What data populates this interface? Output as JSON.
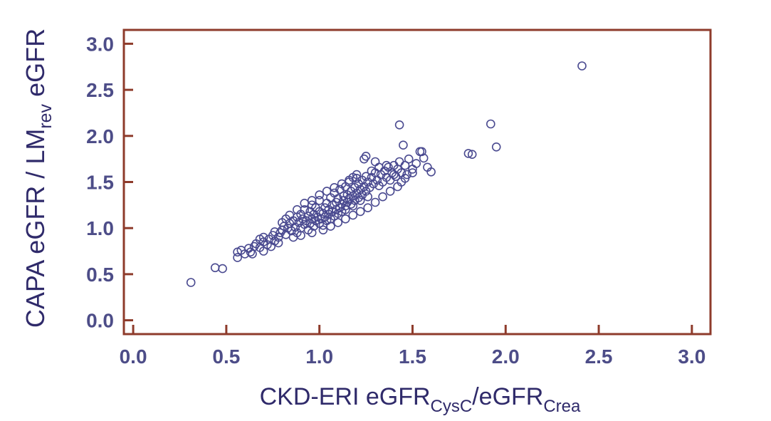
{
  "chart_data": {
    "type": "scatter",
    "xlabel": {
      "main": "CKD-ERI eGFR",
      "sub1": "CysC",
      "mid": "/eGFR",
      "sub2": "Crea"
    },
    "ylabel": {
      "main": "CAPA eGFR / LM",
      "sub": "rev",
      "end": " eGFR"
    },
    "xlim": [
      -0.05,
      3.1
    ],
    "ylim": [
      -0.15,
      3.15
    ],
    "xticks": [
      "0.0",
      "0.5",
      "1.0",
      "1.5",
      "2.0",
      "2.5",
      "3.0"
    ],
    "yticks": [
      "0.0",
      "0.5",
      "1.0",
      "1.5",
      "2.0",
      "2.5",
      "3.0"
    ],
    "grid": false,
    "colors": {
      "marker": "#4a4a90",
      "frame": "#8e3b2b",
      "axis_title": "#2f2a6a",
      "tick_label": "#4d4d88"
    },
    "points": [
      [
        0.31,
        0.41
      ],
      [
        0.44,
        0.57
      ],
      [
        0.48,
        0.56
      ],
      [
        0.56,
        0.68
      ],
      [
        0.56,
        0.74
      ],
      [
        0.58,
        0.76
      ],
      [
        0.6,
        0.72
      ],
      [
        0.62,
        0.78
      ],
      [
        0.63,
        0.74
      ],
      [
        0.65,
        0.8
      ],
      [
        0.66,
        0.83
      ],
      [
        0.68,
        0.79
      ],
      [
        0.7,
        0.85
      ],
      [
        0.7,
        0.9
      ],
      [
        0.72,
        0.82
      ],
      [
        0.73,
        0.88
      ],
      [
        0.75,
        0.92
      ],
      [
        0.76,
        0.86
      ],
      [
        0.78,
        0.9
      ],
      [
        0.79,
        0.95
      ],
      [
        0.8,
        0.98
      ],
      [
        0.81,
        1.02
      ],
      [
        0.82,
        0.93
      ],
      [
        0.83,
        1.0
      ],
      [
        0.84,
        1.05
      ],
      [
        0.85,
        0.97
      ],
      [
        0.86,
        1.08
      ],
      [
        0.87,
        1.01
      ],
      [
        0.88,
        1.12
      ],
      [
        0.88,
        0.95
      ],
      [
        0.89,
        1.06
      ],
      [
        0.9,
        1.15
      ],
      [
        0.9,
        1.0
      ],
      [
        0.91,
        1.1
      ],
      [
        0.92,
        1.04
      ],
      [
        0.92,
        1.2
      ],
      [
        0.93,
        1.08
      ],
      [
        0.94,
        1.13
      ],
      [
        0.94,
        0.98
      ],
      [
        0.95,
        1.18
      ],
      [
        0.95,
        1.05
      ],
      [
        0.96,
        1.1
      ],
      [
        0.96,
        1.25
      ],
      [
        0.97,
        1.02
      ],
      [
        0.97,
        1.15
      ],
      [
        0.98,
        1.08
      ],
      [
        0.98,
        1.22
      ],
      [
        0.99,
        1.12
      ],
      [
        1.0,
        1.05
      ],
      [
        1.0,
        1.18
      ],
      [
        1.0,
        1.3
      ],
      [
        1.01,
        1.1
      ],
      [
        1.02,
        1.16
      ],
      [
        1.02,
        1.03
      ],
      [
        1.03,
        1.22
      ],
      [
        1.03,
        1.12
      ],
      [
        1.04,
        1.08
      ],
      [
        1.04,
        1.27
      ],
      [
        1.05,
        1.15
      ],
      [
        1.05,
        1.2
      ],
      [
        1.06,
        1.1
      ],
      [
        1.06,
        1.33
      ],
      [
        1.07,
        1.18
      ],
      [
        1.07,
        1.25
      ],
      [
        1.08,
        1.13
      ],
      [
        1.08,
        1.38
      ],
      [
        1.09,
        1.2
      ],
      [
        1.09,
        1.28
      ],
      [
        1.1,
        1.16
      ],
      [
        1.1,
        1.32
      ],
      [
        1.11,
        1.22
      ],
      [
        1.11,
        1.42
      ],
      [
        1.12,
        1.26
      ],
      [
        1.12,
        1.18
      ],
      [
        1.13,
        1.35
      ],
      [
        1.13,
        1.3
      ],
      [
        1.14,
        1.24
      ],
      [
        1.14,
        1.45
      ],
      [
        1.15,
        1.28
      ],
      [
        1.15,
        1.36
      ],
      [
        1.16,
        1.32
      ],
      [
        1.16,
        1.5
      ],
      [
        1.17,
        1.26
      ],
      [
        1.17,
        1.4
      ],
      [
        1.18,
        1.35
      ],
      [
        1.18,
        1.55
      ],
      [
        1.19,
        1.3
      ],
      [
        1.19,
        1.44
      ],
      [
        1.2,
        1.38
      ],
      [
        1.2,
        1.58
      ],
      [
        1.21,
        1.33
      ],
      [
        1.21,
        1.48
      ],
      [
        1.22,
        1.42
      ],
      [
        1.23,
        1.36
      ],
      [
        1.23,
        1.52
      ],
      [
        1.24,
        1.45
      ],
      [
        1.25,
        1.4
      ],
      [
        1.25,
        1.56
      ],
      [
        1.26,
        1.5
      ],
      [
        1.27,
        1.44
      ],
      [
        1.28,
        1.55
      ],
      [
        1.29,
        1.48
      ],
      [
        1.3,
        1.6
      ],
      [
        1.31,
        1.52
      ],
      [
        1.32,
        1.46
      ],
      [
        1.33,
        1.58
      ],
      [
        1.34,
        1.5
      ],
      [
        1.35,
        1.62
      ],
      [
        1.36,
        1.55
      ],
      [
        1.37,
        1.66
      ],
      [
        1.38,
        1.52
      ],
      [
        1.39,
        1.6
      ],
      [
        1.4,
        1.68
      ],
      [
        1.41,
        1.56
      ],
      [
        1.42,
        1.64
      ],
      [
        1.43,
        1.72
      ],
      [
        1.44,
        1.6
      ],
      [
        1.45,
        1.9
      ],
      [
        1.46,
        1.68
      ],
      [
        1.47,
        1.58
      ],
      [
        1.48,
        1.75
      ],
      [
        1.5,
        1.64
      ],
      [
        1.52,
        1.7
      ],
      [
        1.54,
        1.83
      ],
      [
        1.56,
        1.76
      ],
      [
        1.58,
        1.66
      ],
      [
        1.6,
        1.61
      ],
      [
        1.25,
        1.78
      ],
      [
        1.24,
        1.75
      ],
      [
        1.3,
        1.72
      ],
      [
        1.43,
        2.12
      ],
      [
        1.55,
        1.83
      ],
      [
        1.8,
        1.81
      ],
      [
        1.82,
        1.8
      ],
      [
        1.92,
        2.13
      ],
      [
        1.95,
        1.88
      ],
      [
        2.41,
        2.76
      ],
      [
        0.74,
        0.8
      ],
      [
        0.78,
        0.84
      ],
      [
        0.86,
        0.9
      ],
      [
        0.9,
        0.92
      ],
      [
        0.96,
        0.95
      ],
      [
        1.02,
        0.98
      ],
      [
        1.06,
        1.02
      ],
      [
        1.1,
        1.06
      ],
      [
        1.14,
        1.1
      ],
      [
        1.18,
        1.14
      ],
      [
        1.22,
        1.18
      ],
      [
        1.26,
        1.22
      ],
      [
        1.3,
        1.28
      ],
      [
        1.34,
        1.34
      ],
      [
        1.38,
        1.4
      ],
      [
        1.42,
        1.45
      ],
      [
        0.84,
        1.14
      ],
      [
        0.88,
        1.2
      ],
      [
        0.92,
        1.27
      ],
      [
        0.96,
        1.3
      ],
      [
        1.0,
        1.36
      ],
      [
        1.04,
        1.4
      ],
      [
        1.08,
        1.44
      ],
      [
        0.7,
        0.75
      ],
      [
        0.64,
        0.72
      ],
      [
        0.68,
        0.88
      ],
      [
        0.76,
        0.96
      ],
      [
        0.8,
        1.06
      ],
      [
        0.82,
        1.1
      ],
      [
        1.12,
        1.48
      ],
      [
        1.16,
        1.52
      ],
      [
        1.2,
        1.54
      ],
      [
        1.28,
        1.62
      ],
      [
        1.32,
        1.66
      ],
      [
        1.36,
        1.68
      ],
      [
        1.4,
        1.58
      ],
      [
        1.46,
        1.54
      ],
      [
        1.5,
        1.6
      ],
      [
        1.44,
        1.5
      ],
      [
        1.26,
        1.34
      ],
      [
        1.22,
        1.3
      ],
      [
        1.18,
        1.24
      ],
      [
        1.14,
        1.2
      ]
    ]
  }
}
